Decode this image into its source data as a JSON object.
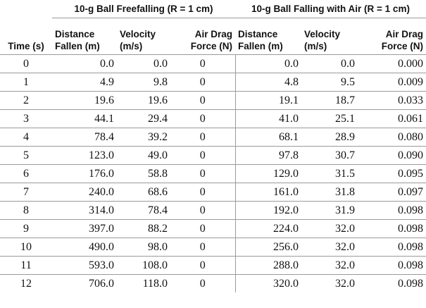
{
  "groups": {
    "free": "10-g Ball Freefalling (R = 1 cm)",
    "air": "10-g Ball Falling with Air (R = 1 cm)"
  },
  "columns": {
    "time": "Time (s)",
    "free_distance": [
      "Distance",
      "Fallen (m)"
    ],
    "free_velocity": [
      "Velocity",
      "(m/s)"
    ],
    "free_drag": [
      "Air Drag",
      "Force (N)"
    ],
    "air_distance": [
      "Distance",
      "Fallen (m)"
    ],
    "air_velocity": [
      "Velocity",
      "(m/s)"
    ],
    "air_drag": [
      "Air Drag",
      "Force (N)"
    ]
  },
  "rows": [
    [
      "0",
      "0.0",
      "0.0",
      "0",
      "0.0",
      "0.0",
      "0.000"
    ],
    [
      "1",
      "4.9",
      "9.8",
      "0",
      "4.8",
      "9.5",
      "0.009"
    ],
    [
      "2",
      "19.6",
      "19.6",
      "0",
      "19.1",
      "18.7",
      "0.033"
    ],
    [
      "3",
      "44.1",
      "29.4",
      "0",
      "41.0",
      "25.1",
      "0.061"
    ],
    [
      "4",
      "78.4",
      "39.2",
      "0",
      "68.1",
      "28.9",
      "0.080"
    ],
    [
      "5",
      "123.0",
      "49.0",
      "0",
      "97.8",
      "30.7",
      "0.090"
    ],
    [
      "6",
      "176.0",
      "58.8",
      "0",
      "129.0",
      "31.5",
      "0.095"
    ],
    [
      "7",
      "240.0",
      "68.6",
      "0",
      "161.0",
      "31.8",
      "0.097"
    ],
    [
      "8",
      "314.0",
      "78.4",
      "0",
      "192.0",
      "31.9",
      "0.098"
    ],
    [
      "9",
      "397.0",
      "88.2",
      "0",
      "224.0",
      "32.0",
      "0.098"
    ],
    [
      "10",
      "490.0",
      "98.0",
      "0",
      "256.0",
      "32.0",
      "0.098"
    ],
    [
      "11",
      "593.0",
      "108.0",
      "0",
      "288.0",
      "32.0",
      "0.098"
    ],
    [
      "12",
      "706.0",
      "118.0",
      "0",
      "320.0",
      "32.0",
      "0.098"
    ]
  ]
}
